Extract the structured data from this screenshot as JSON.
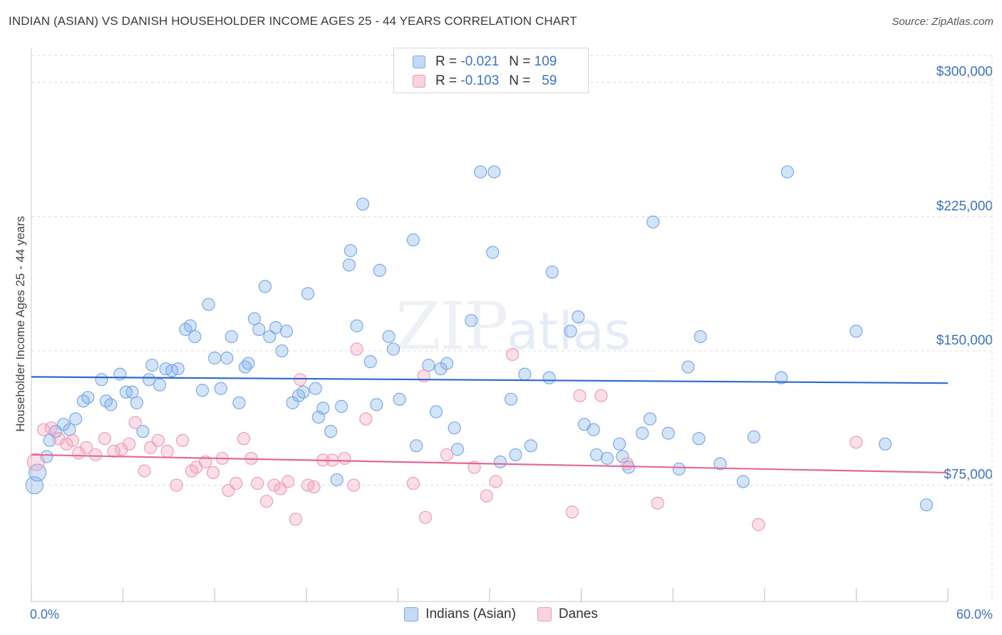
{
  "title": "INDIAN (ASIAN) VS DANISH HOUSEHOLDER INCOME AGES 25 - 44 YEARS CORRELATION CHART",
  "source": "Source: ZipAtlas.com",
  "watermark": {
    "zip": "ZIP",
    "atlas": "atlas"
  },
  "legend": {
    "rows": [
      {
        "r_label": "R =",
        "r_value": "-0.021",
        "n_label": "N =",
        "n_value": "109",
        "color": "#7aaae8"
      },
      {
        "r_label": "R =",
        "r_value": "-0.103",
        "n_label": "N =",
        "n_value": "59",
        "color": "#f29cb8"
      }
    ]
  },
  "bottom_legend": [
    {
      "label": "Indians (Asian)",
      "color": "#7aaae8"
    },
    {
      "label": "Danes",
      "color": "#f29cb8"
    }
  ],
  "chart_data": {
    "type": "scatter",
    "title": "INDIAN (ASIAN) VS DANISH HOUSEHOLDER INCOME AGES 25 - 44 YEARS CORRELATION CHART",
    "xlabel": "",
    "ylabel": "Householder Income Ages 25 - 44 years",
    "xlim": [
      0,
      60
    ],
    "ylim": [
      10000,
      315000
    ],
    "x_tick_labels": [
      "0.0%",
      "60.0%"
    ],
    "y_ticks": [
      75000,
      150000,
      225000,
      300000
    ],
    "y_tick_labels": [
      "$75,000",
      "$150,000",
      "$225,000",
      "$300,000"
    ],
    "grid": true,
    "series": [
      {
        "name": "Indians (Asian)",
        "color": "#7aaae8",
        "trend": {
          "x": [
            0,
            60
          ],
          "y": [
            135500,
            132000
          ]
        },
        "points": [
          [
            0.2,
            75000
          ],
          [
            0.4,
            82000
          ],
          [
            1.0,
            91000
          ],
          [
            1.2,
            100000
          ],
          [
            1.6,
            105000
          ],
          [
            2.1,
            109000
          ],
          [
            2.5,
            106000
          ],
          [
            2.9,
            112000
          ],
          [
            3.4,
            122000
          ],
          [
            3.7,
            124000
          ],
          [
            4.6,
            134000
          ],
          [
            4.9,
            122000
          ],
          [
            5.2,
            120000
          ],
          [
            5.8,
            137000
          ],
          [
            6.2,
            127000
          ],
          [
            6.6,
            127000
          ],
          [
            6.9,
            121000
          ],
          [
            7.3,
            105000
          ],
          [
            7.7,
            134000
          ],
          [
            7.9,
            142000
          ],
          [
            8.4,
            131000
          ],
          [
            8.8,
            140000
          ],
          [
            9.2,
            139000
          ],
          [
            9.6,
            140000
          ],
          [
            10.1,
            162000
          ],
          [
            10.4,
            164000
          ],
          [
            10.7,
            158000
          ],
          [
            11.2,
            128000
          ],
          [
            11.6,
            176000
          ],
          [
            12.0,
            146000
          ],
          [
            12.4,
            129000
          ],
          [
            12.8,
            146000
          ],
          [
            13.1,
            158000
          ],
          [
            13.6,
            121000
          ],
          [
            14.0,
            141000
          ],
          [
            14.2,
            143000
          ],
          [
            14.6,
            168000
          ],
          [
            14.9,
            162000
          ],
          [
            15.3,
            186000
          ],
          [
            15.6,
            158000
          ],
          [
            16.0,
            163000
          ],
          [
            16.4,
            150000
          ],
          [
            16.7,
            161000
          ],
          [
            17.1,
            121000
          ],
          [
            17.5,
            125000
          ],
          [
            17.8,
            127000
          ],
          [
            18.1,
            182000
          ],
          [
            18.6,
            129000
          ],
          [
            18.8,
            113000
          ],
          [
            19.1,
            118000
          ],
          [
            19.6,
            105000
          ],
          [
            20.0,
            78000
          ],
          [
            20.3,
            119000
          ],
          [
            20.8,
            198000
          ],
          [
            20.9,
            206000
          ],
          [
            21.3,
            164000
          ],
          [
            21.7,
            232000
          ],
          [
            22.2,
            144000
          ],
          [
            22.6,
            120000
          ],
          [
            22.8,
            195000
          ],
          [
            23.4,
            158000
          ],
          [
            23.7,
            151000
          ],
          [
            24.1,
            123000
          ],
          [
            25.0,
            212000
          ],
          [
            25.2,
            97000
          ],
          [
            26.0,
            142000
          ],
          [
            26.5,
            116000
          ],
          [
            26.8,
            140000
          ],
          [
            27.2,
            143000
          ],
          [
            27.7,
            107000
          ],
          [
            27.9,
            95000
          ],
          [
            28.8,
            167000
          ],
          [
            29.4,
            250000
          ],
          [
            30.2,
            205000
          ],
          [
            30.3,
            250000
          ],
          [
            30.7,
            88000
          ],
          [
            31.4,
            123000
          ],
          [
            31.7,
            92000
          ],
          [
            32.3,
            137000
          ],
          [
            32.7,
            97000
          ],
          [
            33.9,
            135000
          ],
          [
            34.1,
            194000
          ],
          [
            35.3,
            161000
          ],
          [
            35.8,
            169000
          ],
          [
            36.2,
            109000
          ],
          [
            36.8,
            106000
          ],
          [
            37.0,
            92000
          ],
          [
            37.7,
            90000
          ],
          [
            38.5,
            98000
          ],
          [
            38.7,
            91000
          ],
          [
            39.1,
            85000
          ],
          [
            40.0,
            104000
          ],
          [
            40.5,
            112000
          ],
          [
            40.7,
            222000
          ],
          [
            41.7,
            104000
          ],
          [
            42.4,
            84000
          ],
          [
            43.0,
            141000
          ],
          [
            43.7,
            101000
          ],
          [
            43.8,
            158000
          ],
          [
            45.1,
            87000
          ],
          [
            46.6,
            77000
          ],
          [
            47.3,
            102000
          ],
          [
            49.1,
            135000
          ],
          [
            49.5,
            250000
          ],
          [
            54.0,
            161000
          ],
          [
            55.9,
            98000
          ],
          [
            58.6,
            64000
          ]
        ]
      },
      {
        "name": "Danes",
        "color": "#f29cb8",
        "trend": {
          "x": [
            0,
            60
          ],
          "y": [
            92000,
            82000
          ]
        },
        "points": [
          [
            0.3,
            88000
          ],
          [
            0.8,
            106000
          ],
          [
            1.3,
            107000
          ],
          [
            1.8,
            101000
          ],
          [
            2.3,
            98000
          ],
          [
            2.7,
            100000
          ],
          [
            3.1,
            93000
          ],
          [
            3.6,
            96000
          ],
          [
            4.2,
            92000
          ],
          [
            4.8,
            101000
          ],
          [
            5.4,
            94000
          ],
          [
            5.9,
            95000
          ],
          [
            6.4,
            98000
          ],
          [
            6.8,
            110000
          ],
          [
            7.4,
            83000
          ],
          [
            7.8,
            96000
          ],
          [
            8.3,
            100000
          ],
          [
            8.9,
            94000
          ],
          [
            9.5,
            75000
          ],
          [
            9.9,
            100000
          ],
          [
            10.5,
            83000
          ],
          [
            10.8,
            85000
          ],
          [
            11.4,
            88000
          ],
          [
            11.9,
            82000
          ],
          [
            12.5,
            90000
          ],
          [
            12.9,
            72000
          ],
          [
            13.4,
            76000
          ],
          [
            13.9,
            101000
          ],
          [
            14.4,
            90000
          ],
          [
            14.8,
            76000
          ],
          [
            15.4,
            66000
          ],
          [
            15.9,
            75000
          ],
          [
            16.3,
            73000
          ],
          [
            16.8,
            77000
          ],
          [
            17.3,
            56000
          ],
          [
            17.6,
            134000
          ],
          [
            18.1,
            75000
          ],
          [
            18.5,
            74000
          ],
          [
            19.1,
            89000
          ],
          [
            19.7,
            89000
          ],
          [
            20.5,
            90000
          ],
          [
            21.1,
            75000
          ],
          [
            21.3,
            151000
          ],
          [
            21.9,
            112000
          ],
          [
            25.0,
            76000
          ],
          [
            25.8,
            57000
          ],
          [
            25.7,
            136000
          ],
          [
            27.2,
            92000
          ],
          [
            29.0,
            85000
          ],
          [
            29.8,
            69000
          ],
          [
            30.4,
            77000
          ],
          [
            31.5,
            148000
          ],
          [
            35.4,
            60000
          ],
          [
            35.9,
            125000
          ],
          [
            37.3,
            125000
          ],
          [
            39.0,
            87000
          ],
          [
            41.0,
            65000
          ],
          [
            47.6,
            53000
          ],
          [
            54.0,
            99000
          ]
        ]
      }
    ]
  }
}
